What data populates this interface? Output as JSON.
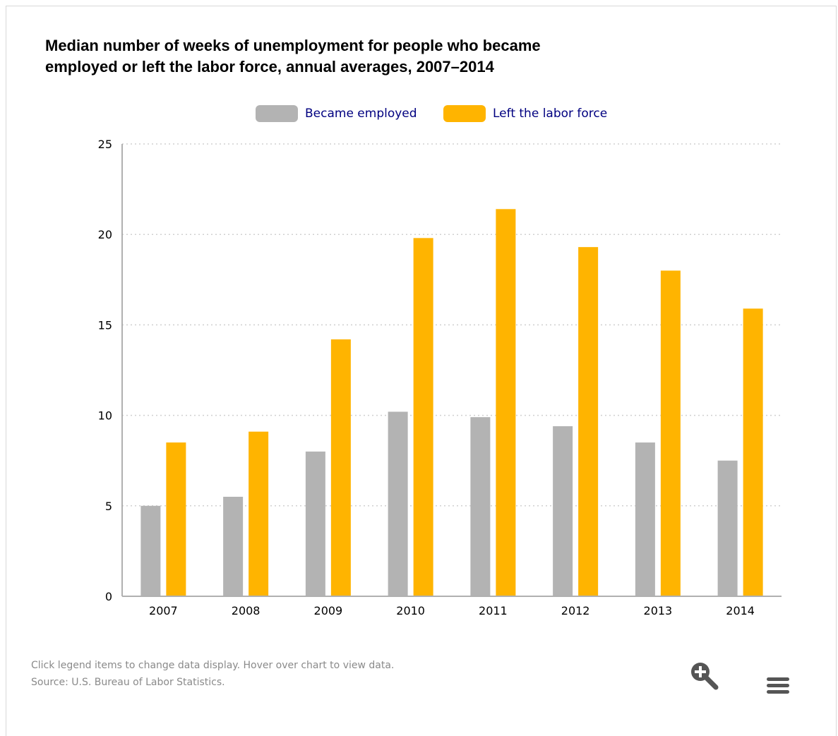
{
  "chart_data": {
    "type": "bar",
    "title": [
      "Median number of weeks of unemployment for people who became",
      "employed or left the labor force, annual averages, 2007–2014"
    ],
    "categories": [
      "2007",
      "2008",
      "2009",
      "2010",
      "2011",
      "2012",
      "2013",
      "2014"
    ],
    "series": [
      {
        "name": "Became employed",
        "color": "#b3b3b3",
        "values": [
          5.0,
          5.5,
          8.0,
          10.2,
          9.9,
          9.4,
          8.5,
          7.5
        ]
      },
      {
        "name": "Left the labor force",
        "color": "#ffb400",
        "values": [
          8.5,
          9.1,
          14.2,
          19.8,
          21.4,
          19.3,
          18.0,
          15.9
        ]
      }
    ],
    "yticks": [
      "0",
      "5",
      "10",
      "15",
      "20",
      "25"
    ],
    "ylim": [
      0,
      25
    ],
    "grid": true,
    "legend_position": "top-center",
    "xlabel": "",
    "ylabel": ""
  },
  "footer": {
    "note": "Click legend items to change data display. Hover over chart to view data.",
    "source": "Source: U.S. Bureau of Labor Statistics."
  },
  "icons": {
    "zoom": "magnifier-plus-icon",
    "menu": "hamburger-menu-icon"
  },
  "colors": {
    "grid": "#d0d0d0",
    "axis": "#b0b0b0",
    "legend_text": "#000080",
    "icon": "#555555"
  }
}
